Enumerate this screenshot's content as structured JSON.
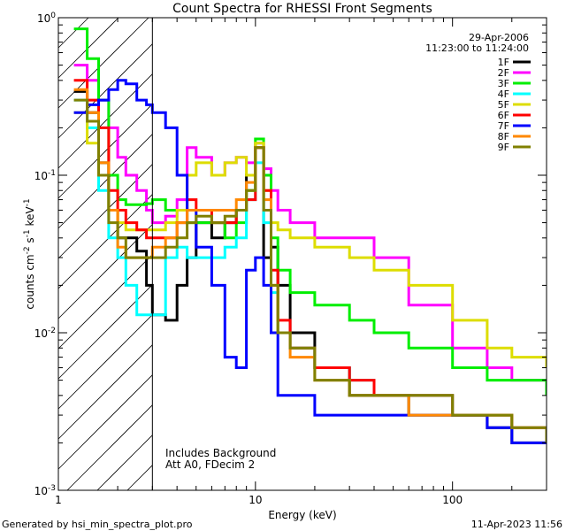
{
  "chart_data": {
    "type": "line",
    "title": "Count Spectra for RHESSI Front Segments",
    "xlabel": "Energy (keV)",
    "ylabel": "counts cm^-2 s^-1 keV^-1",
    "xscale": "log",
    "yscale": "log",
    "xlim": [
      1,
      300
    ],
    "ylim": [
      0.001,
      1
    ],
    "x_tick_labels": [
      {
        "v": 1,
        "label": "1"
      },
      {
        "v": 10,
        "label": "10"
      },
      {
        "v": 100,
        "label": "100"
      }
    ],
    "y_tick_labels": [
      {
        "v": 1,
        "label": "10^0"
      },
      {
        "v": 0.1,
        "label": "10^-1"
      },
      {
        "v": 0.01,
        "label": "10^-2"
      },
      {
        "v": 0.001,
        "label": "10^-3"
      }
    ],
    "date": "29-Apr-2006",
    "time_range": "11:23:00 to 11:24:00",
    "annotations": [
      "Includes Background",
      "Att A0, FDecim 2"
    ],
    "hatched_region_xmax": 3,
    "legend_position": "top-right",
    "series": [
      {
        "name": "1F",
        "color": "#000000",
        "x": [
          1.2,
          1.4,
          1.6,
          1.8,
          2.0,
          2.2,
          2.5,
          2.8,
          3.0,
          3.5,
          4.0,
          4.5,
          5.0,
          6,
          7,
          8,
          9,
          10,
          11,
          12,
          13,
          15,
          20,
          30,
          40,
          60,
          100,
          150,
          200,
          300
        ],
        "y": [
          0.34,
          0.25,
          0.12,
          0.06,
          0.04,
          0.04,
          0.033,
          0.02,
          0.013,
          0.012,
          0.02,
          0.03,
          0.05,
          0.04,
          0.05,
          0.06,
          0.1,
          0.15,
          0.03,
          0.035,
          0.02,
          0.01,
          0.006,
          0.004,
          0.004,
          0.003,
          0.003,
          0.0025,
          0.002,
          0.0025
        ]
      },
      {
        "name": "2F",
        "color": "#ff00ff",
        "x": [
          1.2,
          1.4,
          1.6,
          1.8,
          2.0,
          2.2,
          2.5,
          2.8,
          3.0,
          3.5,
          4.0,
          4.5,
          5.0,
          6,
          7,
          8,
          9,
          10,
          11,
          12,
          13,
          15,
          20,
          30,
          40,
          60,
          100,
          150,
          200,
          300
        ],
        "y": [
          0.5,
          0.4,
          0.3,
          0.2,
          0.13,
          0.1,
          0.08,
          0.06,
          0.05,
          0.055,
          0.07,
          0.15,
          0.13,
          0.1,
          0.12,
          0.13,
          0.12,
          0.16,
          0.11,
          0.08,
          0.06,
          0.05,
          0.04,
          0.04,
          0.03,
          0.015,
          0.008,
          0.006,
          0.005,
          0.005
        ]
      },
      {
        "name": "3F",
        "color": "#00ee00",
        "x": [
          1.2,
          1.4,
          1.6,
          1.8,
          2.0,
          2.2,
          2.5,
          2.8,
          3.0,
          3.5,
          4.0,
          4.5,
          5.0,
          6,
          7,
          8,
          9,
          10,
          11,
          12,
          13,
          15,
          20,
          30,
          40,
          60,
          100,
          150,
          200,
          300
        ],
        "y": [
          0.85,
          0.55,
          0.3,
          0.1,
          0.07,
          0.065,
          0.065,
          0.066,
          0.07,
          0.06,
          0.06,
          0.05,
          0.05,
          0.05,
          0.04,
          0.05,
          0.08,
          0.17,
          0.1,
          0.04,
          0.025,
          0.018,
          0.015,
          0.012,
          0.01,
          0.008,
          0.006,
          0.005,
          0.005,
          0.004
        ]
      },
      {
        "name": "4F",
        "color": "#00ffff",
        "x": [
          1.2,
          1.4,
          1.6,
          1.8,
          2.0,
          2.2,
          2.5,
          2.8,
          3.0,
          3.5,
          4.0,
          4.5,
          5.0,
          6,
          7,
          8,
          9,
          10,
          11,
          12,
          13,
          15,
          20,
          30,
          40,
          60,
          100,
          150,
          200,
          300
        ],
        "y": [
          0.3,
          0.2,
          0.08,
          0.04,
          0.03,
          0.02,
          0.013,
          0.013,
          0.013,
          0.03,
          0.035,
          0.03,
          0.03,
          0.03,
          0.035,
          0.04,
          0.07,
          0.12,
          0.05,
          0.018,
          0.01,
          0.008,
          0.006,
          0.005,
          0.004,
          0.004,
          0.003,
          0.003,
          0.0025,
          0.002
        ]
      },
      {
        "name": "5F",
        "color": "#dddd00",
        "x": [
          1.2,
          1.4,
          1.6,
          1.8,
          2.0,
          2.2,
          2.5,
          2.8,
          3.0,
          3.5,
          4.0,
          4.5,
          5.0,
          6,
          7,
          8,
          9,
          10,
          11,
          12,
          13,
          15,
          20,
          30,
          40,
          60,
          100,
          150,
          200,
          300
        ],
        "y": [
          0.25,
          0.16,
          0.1,
          0.06,
          0.05,
          0.045,
          0.045,
          0.045,
          0.045,
          0.05,
          0.06,
          0.1,
          0.12,
          0.1,
          0.12,
          0.13,
          0.1,
          0.16,
          0.08,
          0.05,
          0.045,
          0.04,
          0.035,
          0.03,
          0.025,
          0.02,
          0.012,
          0.008,
          0.007,
          0.006
        ]
      },
      {
        "name": "6F",
        "color": "#ff0000",
        "x": [
          1.2,
          1.4,
          1.6,
          1.8,
          2.0,
          2.2,
          2.5,
          2.8,
          3.0,
          3.5,
          4.0,
          4.5,
          5.0,
          6,
          7,
          8,
          9,
          10,
          11,
          12,
          13,
          15,
          20,
          30,
          40,
          60,
          100,
          150,
          200,
          300
        ],
        "y": [
          0.4,
          0.3,
          0.2,
          0.08,
          0.06,
          0.05,
          0.045,
          0.04,
          0.04,
          0.04,
          0.05,
          0.07,
          0.06,
          0.05,
          0.05,
          0.06,
          0.07,
          0.15,
          0.08,
          0.025,
          0.012,
          0.008,
          0.006,
          0.005,
          0.004,
          0.004,
          0.003,
          0.003,
          0.0025,
          0.002
        ]
      },
      {
        "name": "7F",
        "color": "#0000ff",
        "x": [
          1.2,
          1.4,
          1.6,
          1.8,
          2.0,
          2.2,
          2.5,
          2.8,
          3.0,
          3.5,
          4.0,
          4.5,
          5.0,
          6,
          7,
          8,
          9,
          10,
          11,
          12,
          13,
          15,
          20,
          30,
          40,
          60,
          100,
          150,
          200,
          300
        ],
        "y": [
          0.25,
          0.28,
          0.3,
          0.35,
          0.4,
          0.38,
          0.3,
          0.28,
          0.25,
          0.2,
          0.1,
          0.06,
          0.035,
          0.02,
          0.007,
          0.006,
          0.025,
          0.03,
          0.02,
          0.01,
          0.004,
          0.004,
          0.003,
          0.003,
          0.003,
          0.003,
          0.003,
          0.0025,
          0.002,
          0.002
        ]
      },
      {
        "name": "8F",
        "color": "#ff8800",
        "x": [
          1.2,
          1.4,
          1.6,
          1.8,
          2.0,
          2.2,
          2.5,
          2.8,
          3.0,
          3.5,
          4.0,
          4.5,
          5.0,
          6,
          7,
          8,
          9,
          10,
          11,
          12,
          13,
          15,
          20,
          30,
          40,
          60,
          100,
          150,
          200,
          300
        ],
        "y": [
          0.35,
          0.25,
          0.12,
          0.06,
          0.035,
          0.03,
          0.03,
          0.03,
          0.035,
          0.04,
          0.05,
          0.06,
          0.06,
          0.06,
          0.06,
          0.07,
          0.09,
          0.15,
          0.07,
          0.02,
          0.01,
          0.007,
          0.005,
          0.004,
          0.004,
          0.003,
          0.003,
          0.003,
          0.0025,
          0.002
        ]
      },
      {
        "name": "9F",
        "color": "#808000",
        "x": [
          1.2,
          1.4,
          1.6,
          1.8,
          2.0,
          2.2,
          2.5,
          2.8,
          3.0,
          3.5,
          4.0,
          4.5,
          5.0,
          6,
          7,
          8,
          9,
          10,
          11,
          12,
          13,
          15,
          20,
          30,
          40,
          60,
          100,
          150,
          200,
          300
        ],
        "y": [
          0.3,
          0.22,
          0.1,
          0.05,
          0.04,
          0.03,
          0.03,
          0.03,
          0.03,
          0.035,
          0.04,
          0.05,
          0.055,
          0.05,
          0.055,
          0.06,
          0.08,
          0.15,
          0.06,
          0.02,
          0.01,
          0.008,
          0.005,
          0.004,
          0.004,
          0.004,
          0.003,
          0.003,
          0.0025,
          0.002
        ]
      }
    ]
  },
  "footer": {
    "left": "Generated by hsi_min_spectra_plot.pro",
    "right": "11-Apr-2023 11:56"
  }
}
